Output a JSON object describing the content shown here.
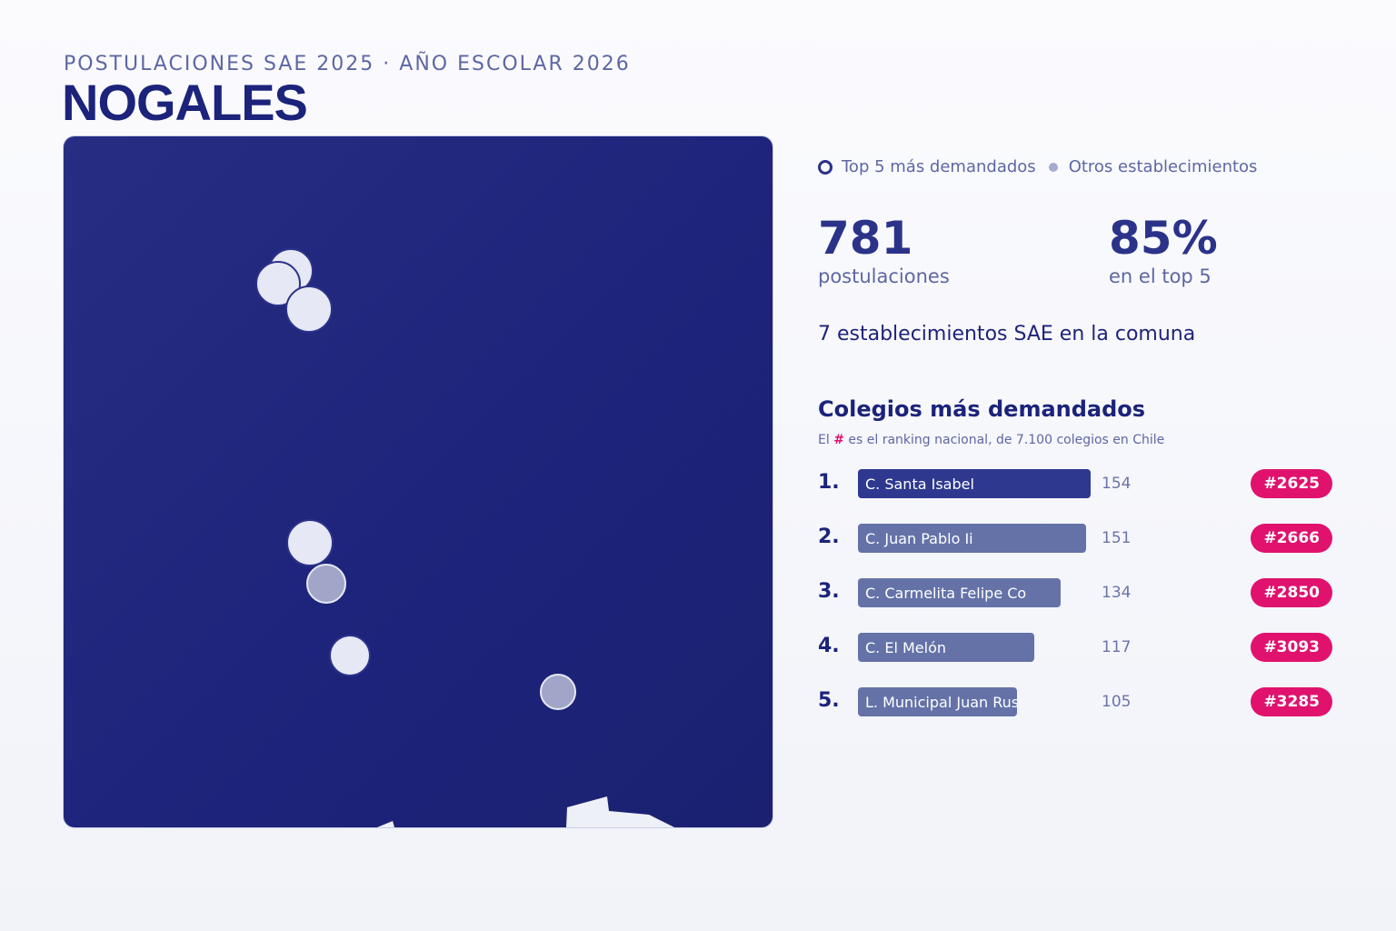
{
  "header": {
    "supertitle": "POSTULACIONES SAE 2025 · AÑO ESCOLAR 2026",
    "title": "NOGALES"
  },
  "legend": {
    "top5_label": "Top 5 más demandados",
    "others_label": "Otros establecimientos"
  },
  "stats": {
    "applications_value": "781",
    "applications_label": "postulaciones",
    "top5_share_value": "85%",
    "top5_share_label": "en el top 5",
    "schools_count_text": "7 establecimientos SAE en la comuna"
  },
  "ranking": {
    "title": "Colegios más demandados",
    "note_prefix": "El",
    "note_hash": "#",
    "note_suffix": "es el ranking nacional, de 7.100 colegios en Chile",
    "max_value": 154,
    "items": [
      {
        "position": "1.",
        "name": "C. Santa Isabel",
        "value": 154,
        "badge": "#2625"
      },
      {
        "position": "2.",
        "name": "C. Juan Pablo Ii",
        "value": 151,
        "badge": "#2666"
      },
      {
        "position": "3.",
        "name": "C. Carmelita Felipe Co",
        "value": 134,
        "badge": "#2850"
      },
      {
        "position": "4.",
        "name": "C. El Melón",
        "value": 117,
        "badge": "#3093"
      },
      {
        "position": "5.",
        "name": "L. Municipal Juan Rusque",
        "value": 105,
        "badge": "#3285"
      }
    ]
  },
  "map": {
    "colors": {
      "background": "#1f257a",
      "top5_marker": "#e6e8f5",
      "other_marker": "#a1a6c8",
      "accent": "#e0126e"
    }
  }
}
